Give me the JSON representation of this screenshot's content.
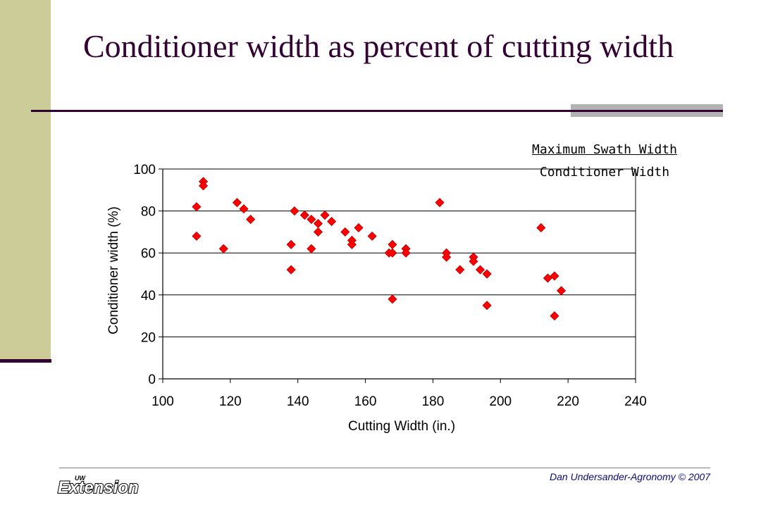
{
  "slide": {
    "title": "Conditioner width as percent of cutting width",
    "legend_top": "Maximum Swath Width",
    "legend_bottom": "Conditioner Width",
    "footer_credit": "Dan  Undersander-Agronomy © 2007",
    "logo_text": "Extension",
    "logo_small_text": "UW",
    "colors": {
      "sidebar": "#cccc99",
      "title": "#330033",
      "rule": "#330033",
      "accent_bar": "#b2b2b2",
      "marker": "#ff0000",
      "footer_text": "#0a0a7a"
    }
  },
  "chart_data": {
    "type": "scatter",
    "title": "",
    "xlabel": "Cutting Width (in.)",
    "ylabel": "Conditioner width (%)",
    "xlim": [
      100,
      240
    ],
    "ylim": [
      0,
      100
    ],
    "xticks": [
      100,
      120,
      140,
      160,
      180,
      200,
      220,
      240
    ],
    "yticks": [
      0,
      20,
      40,
      60,
      80,
      100
    ],
    "grid": "horizontal",
    "marker": "diamond",
    "marker_color": "#ff0000",
    "points": [
      [
        110,
        82
      ],
      [
        110,
        68
      ],
      [
        112,
        94
      ],
      [
        112,
        92
      ],
      [
        118,
        62
      ],
      [
        122,
        84
      ],
      [
        124,
        81
      ],
      [
        126,
        76
      ],
      [
        138,
        64
      ],
      [
        138,
        52
      ],
      [
        139,
        80
      ],
      [
        142,
        78
      ],
      [
        144,
        76
      ],
      [
        144,
        62
      ],
      [
        146,
        74
      ],
      [
        146,
        70
      ],
      [
        148,
        78
      ],
      [
        150,
        75
      ],
      [
        154,
        70
      ],
      [
        156,
        66
      ],
      [
        156,
        64
      ],
      [
        158,
        72
      ],
      [
        162,
        68
      ],
      [
        167,
        60
      ],
      [
        168,
        64
      ],
      [
        168,
        60
      ],
      [
        168,
        38
      ],
      [
        172,
        62
      ],
      [
        172,
        60
      ],
      [
        182,
        84
      ],
      [
        184,
        60
      ],
      [
        184,
        58
      ],
      [
        188,
        52
      ],
      [
        192,
        58
      ],
      [
        192,
        56
      ],
      [
        194,
        52
      ],
      [
        196,
        50
      ],
      [
        196,
        35
      ],
      [
        212,
        72
      ],
      [
        214,
        48
      ],
      [
        216,
        49
      ],
      [
        216,
        30
      ],
      [
        218,
        42
      ]
    ]
  }
}
